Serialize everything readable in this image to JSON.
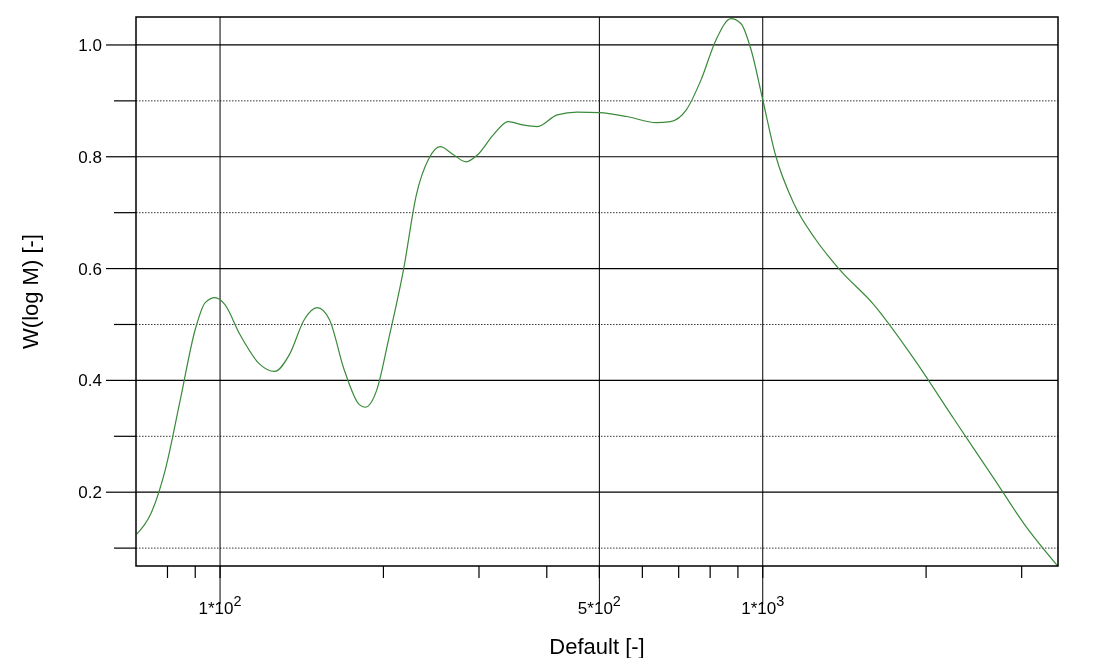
{
  "chart_data": {
    "type": "line",
    "xlabel": "Default [-]",
    "ylabel": "W(log M) [-]",
    "log": "x",
    "grid": true,
    "marker": "none",
    "line_style": "solid",
    "xlim": [
      70,
      3500
    ],
    "ylim": [
      0.068,
      1.05
    ],
    "xticks": [
      {
        "value": 80,
        "label": null
      },
      {
        "value": 90,
        "label": null
      },
      {
        "value": 100,
        "label": "1*10$^{2}$"
      },
      {
        "value": 200,
        "label": null
      },
      {
        "value": 300,
        "label": null
      },
      {
        "value": 400,
        "label": null
      },
      {
        "value": 500,
        "label": "5*10$^{2}$"
      },
      {
        "value": 600,
        "label": null
      },
      {
        "value": 700,
        "label": null
      },
      {
        "value": 800,
        "label": null
      },
      {
        "value": 900,
        "label": null
      },
      {
        "value": 1000,
        "label": "1*10$^{3}$"
      },
      {
        "value": 2000,
        "label": null
      },
      {
        "value": 3000,
        "label": null
      }
    ],
    "yticks": [
      {
        "value": 0.1,
        "label": null
      },
      {
        "value": 0.2,
        "label": "0.2"
      },
      {
        "value": 0.3,
        "label": null
      },
      {
        "value": 0.4,
        "label": "0.4"
      },
      {
        "value": 0.5,
        "label": null
      },
      {
        "value": 0.6,
        "label": "0.6"
      },
      {
        "value": 0.7,
        "label": null
      },
      {
        "value": 0.8,
        "label": "0.8"
      },
      {
        "value": 0.9,
        "label": null
      },
      {
        "value": 1.0,
        "label": "1.0"
      }
    ],
    "series": [
      {
        "color": "#3a8a3a",
        "x": [
          70.2,
          74.5,
          79.3,
          84.5,
          90,
          93.9,
          97.9,
          102,
          108.8,
          118.3,
          126,
          134.2,
          143,
          151,
          159,
          169.2,
          180.4,
          185,
          194.6,
          204.4,
          217.8,
          230,
          242,
          254.6,
          268.8,
          284,
          298.7,
          318.7,
          339.6,
          361,
          384.5,
          418,
          455,
          500,
          562,
          636.5,
          676,
          723,
          770,
          820,
          874,
          912,
          952,
          1000,
          1055,
          1144,
          1252,
          1386,
          1600,
          1901,
          2254,
          2673,
          3033,
          3496
        ],
        "values": [
          0.125,
          0.161,
          0.241,
          0.366,
          0.491,
          0.539,
          0.548,
          0.536,
          0.482,
          0.429,
          0.416,
          0.446,
          0.509,
          0.53,
          0.509,
          0.42,
          0.357,
          0.352,
          0.384,
          0.473,
          0.598,
          0.732,
          0.795,
          0.818,
          0.804,
          0.791,
          0.804,
          0.839,
          0.863,
          0.857,
          0.854,
          0.875,
          0.88,
          0.879,
          0.872,
          0.861,
          0.863,
          0.884,
          0.938,
          1.009,
          1.047,
          1.038,
          0.991,
          0.902,
          0.804,
          0.714,
          0.652,
          0.598,
          0.536,
          0.438,
          0.33,
          0.223,
          0.143,
          0.068
        ]
      }
    ]
  }
}
